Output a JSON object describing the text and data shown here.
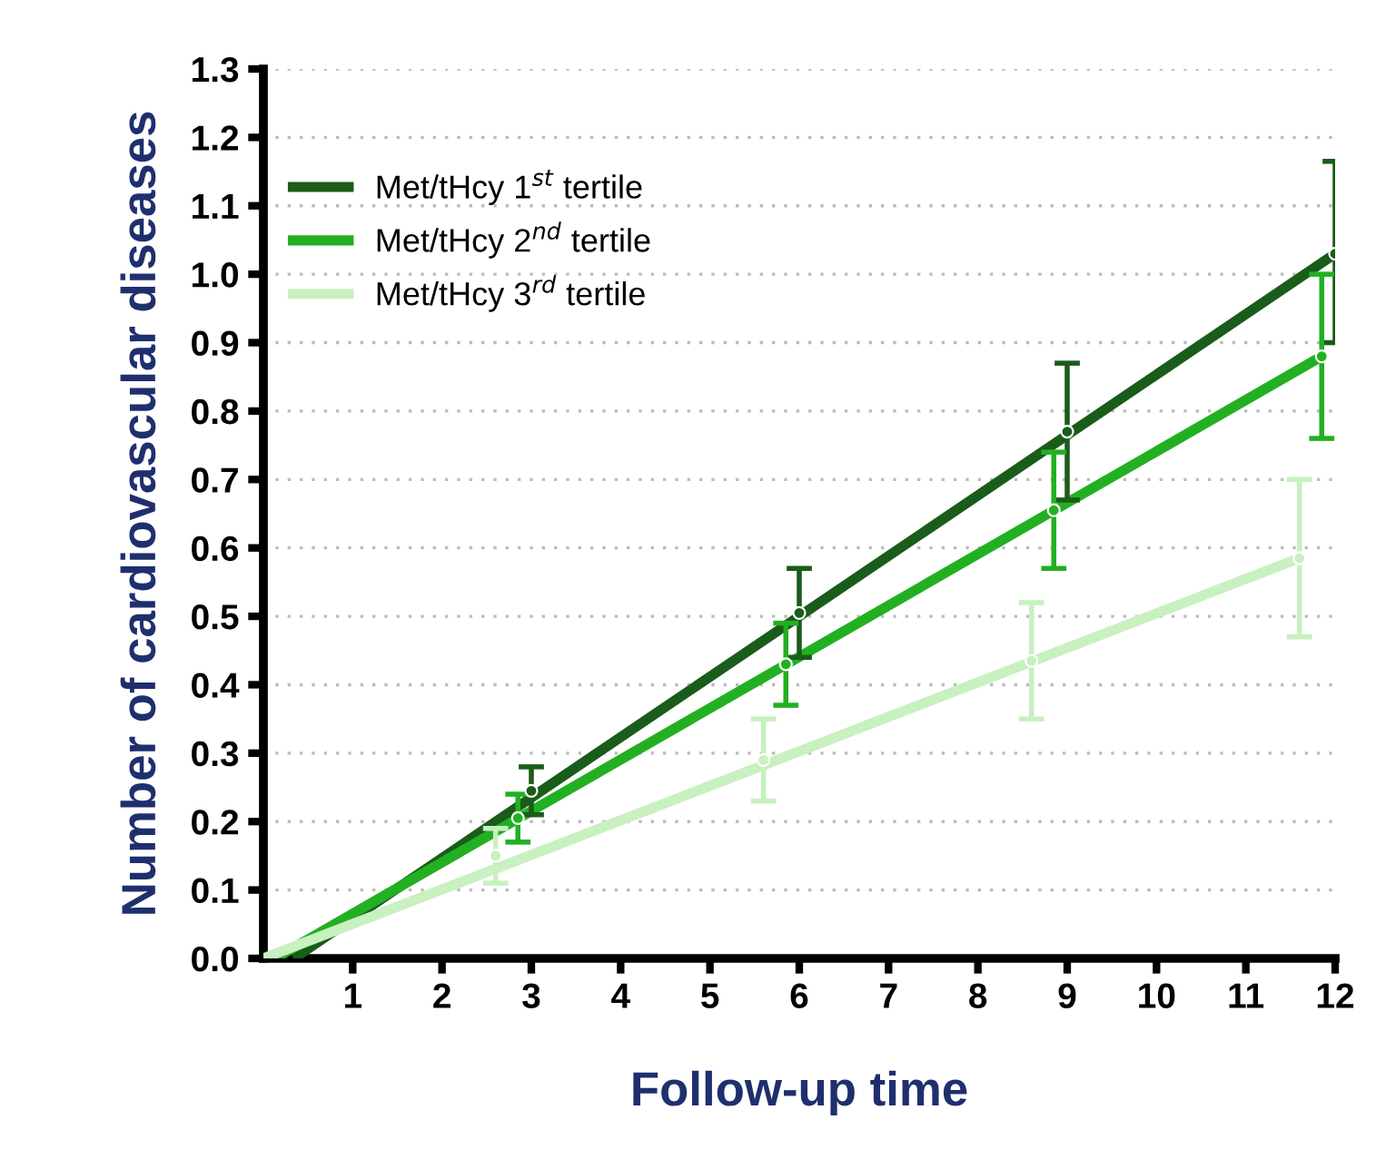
{
  "chart_data": {
    "type": "line",
    "xlabel": "Follow-up time",
    "ylabel": "Number of cardiovascular diseases",
    "xlim": [
      0,
      12
    ],
    "xticks": [
      1,
      2,
      3,
      4,
      5,
      6,
      7,
      8,
      9,
      10,
      11,
      12
    ],
    "ylim": [
      0,
      1.3
    ],
    "yticks": [
      {
        "value": 0,
        "label": "0.0"
      },
      0.1,
      0.2,
      0.3,
      0.4,
      0.5,
      0.6,
      0.7,
      0.8,
      0.9,
      {
        "value": 1,
        "label": "1.0"
      },
      1.1,
      1.2,
      1.3
    ],
    "grid": "y",
    "legend": "top left",
    "line_style": "solid",
    "series": [
      {
        "name": "Met/tHcy 1$^{st}$ tertile",
        "color": "#1a5c1a",
        "x": [
          0.34,
          12
        ],
        "values": [
          0,
          1.03
        ]
      },
      {
        "name": "Met/tHcy 2$^{nd}$ tertile",
        "color": "#22b022",
        "x": [
          0.13,
          11.85
        ],
        "values": [
          0,
          0.88
        ]
      },
      {
        "name": "Met/tHcy 3$^{rd}$ tertile",
        "color": "#c8f0c0",
        "x": [
          0,
          11.6
        ],
        "values": [
          0,
          0.585
        ]
      },
      {
        "type": "scatter",
        "color": "#1a5c1a",
        "x": [
          3,
          6,
          9,
          12
        ],
        "values": [
          0.245,
          0.505,
          0.77,
          1.03
        ],
        "errors": [
          [
            0.21,
            0.28
          ],
          [
            0.44,
            0.57
          ],
          [
            0.67,
            0.87
          ],
          [
            0.9,
            1.165
          ]
        ]
      },
      {
        "type": "scatter",
        "color": "#22b022",
        "x": [
          2.85,
          5.85,
          8.85,
          11.85
        ],
        "values": [
          0.205,
          0.43,
          0.655,
          0.88
        ],
        "errors": [
          [
            0.17,
            0.24
          ],
          [
            0.37,
            0.49
          ],
          [
            0.57,
            0.74
          ],
          [
            0.76,
            1.0
          ]
        ]
      },
      {
        "type": "scatter",
        "color": "#c8f0c0",
        "x": [
          2.6,
          5.6,
          8.6,
          11.6
        ],
        "values": [
          0.15,
          0.29,
          0.435,
          0.585
        ],
        "errors": [
          [
            0.11,
            0.19
          ],
          [
            0.23,
            0.35
          ],
          [
            0.35,
            0.52
          ],
          [
            0.47,
            0.7
          ]
        ]
      }
    ]
  }
}
